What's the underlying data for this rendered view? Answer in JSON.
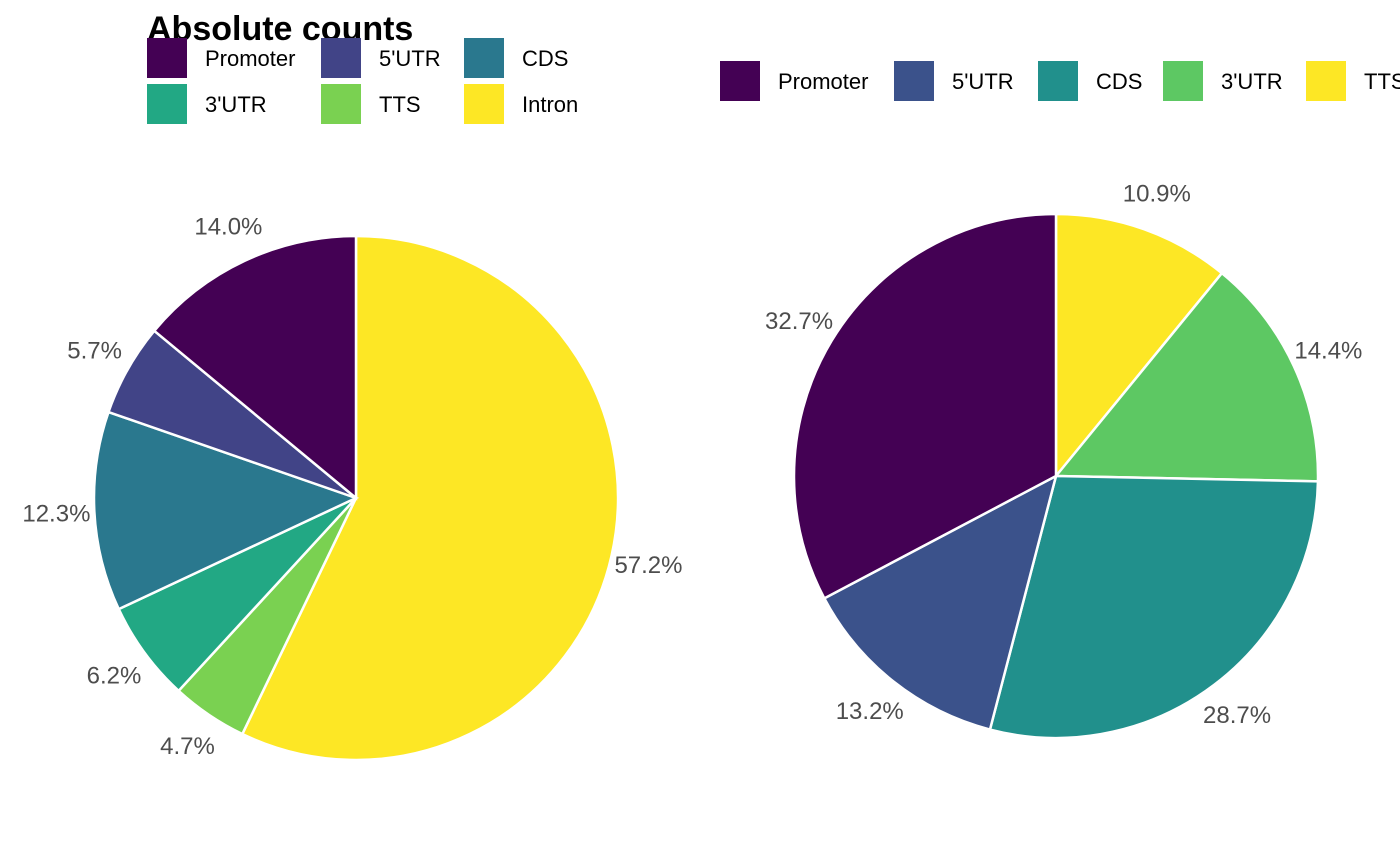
{
  "chart_data": [
    {
      "type": "pie",
      "title": "Absolute counts",
      "start_angle_deg": 0,
      "direction": "clockwise",
      "legend_position": "top",
      "legend_columns": 3,
      "legend": [
        {
          "name": "Promoter",
          "color": "#440154"
        },
        {
          "name": "5'UTR",
          "color": "#414487"
        },
        {
          "name": "CDS",
          "color": "#2A788E"
        },
        {
          "name": "3'UTR",
          "color": "#22A884"
        },
        {
          "name": "TTS",
          "color": "#7AD151"
        },
        {
          "name": "Intron",
          "color": "#FDE725"
        }
      ],
      "slices": [
        {
          "category": "Intron",
          "value": 57.2,
          "label": "57.2%",
          "color": "#FDE725"
        },
        {
          "category": "TTS",
          "value": 4.7,
          "label": "4.7%",
          "color": "#7AD151"
        },
        {
          "category": "3'UTR",
          "value": 6.2,
          "label": "6.2%",
          "color": "#22A884"
        },
        {
          "category": "CDS",
          "value": 12.3,
          "label": "12.3%",
          "color": "#2A788E"
        },
        {
          "category": "5'UTR",
          "value": 5.7,
          "label": "5.7%",
          "color": "#414487"
        },
        {
          "category": "Promoter",
          "value": 14.0,
          "label": "14.0%",
          "color": "#440154"
        }
      ]
    },
    {
      "type": "pie",
      "title": "",
      "start_angle_deg": 0,
      "direction": "clockwise",
      "legend_position": "top",
      "legend_columns": 5,
      "legend": [
        {
          "name": "Promoter",
          "color": "#440154"
        },
        {
          "name": "5'UTR",
          "color": "#3B528B"
        },
        {
          "name": "CDS",
          "color": "#21908C"
        },
        {
          "name": "3'UTR",
          "color": "#5DC863"
        },
        {
          "name": "TTS",
          "color": "#FDE725"
        }
      ],
      "slices": [
        {
          "category": "TTS",
          "value": 10.9,
          "label": "10.9%",
          "color": "#FDE725"
        },
        {
          "category": "3'UTR",
          "value": 14.4,
          "label": "14.4%",
          "color": "#5DC863"
        },
        {
          "category": "CDS",
          "value": 28.7,
          "label": "28.7%",
          "color": "#21908C"
        },
        {
          "category": "5'UTR",
          "value": 13.2,
          "label": "13.2%",
          "color": "#3B528B"
        },
        {
          "category": "Promoter",
          "value": 32.7,
          "label": "32.7%",
          "color": "#440154"
        }
      ]
    }
  ]
}
